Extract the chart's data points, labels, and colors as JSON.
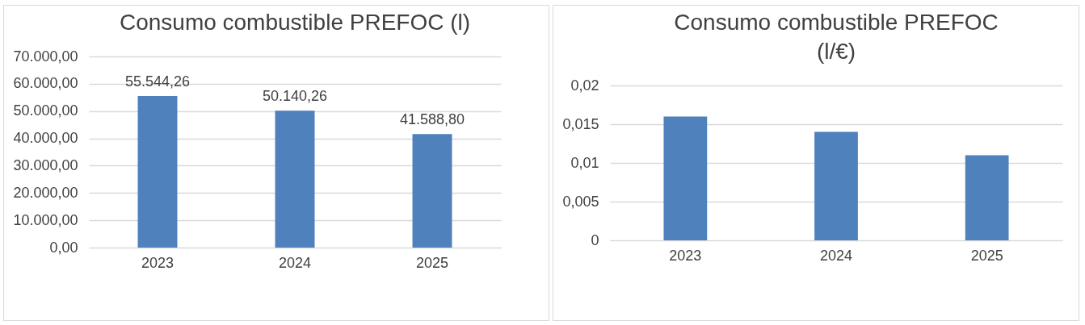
{
  "chart_data": [
    {
      "type": "bar",
      "title": "Consumo combustible PREFOC (l)",
      "categories": [
        "2023",
        "2024",
        "2025"
      ],
      "values": [
        55544.26,
        50140.26,
        41588.8
      ],
      "value_labels": [
        "55.544,26",
        "50.140,26",
        "41.588,80"
      ],
      "color": "#4f81bd",
      "ylim": [
        0,
        70000
      ],
      "yticks": [
        {
          "value": 0,
          "label": "0,00"
        },
        {
          "value": 10000,
          "label": "10.000,00"
        },
        {
          "value": 20000,
          "label": "20.000,00"
        },
        {
          "value": 30000,
          "label": "30.000,00"
        },
        {
          "value": 40000,
          "label": "40.000,00"
        },
        {
          "value": 50000,
          "label": "50.000,00"
        },
        {
          "value": 60000,
          "label": "60.000,00"
        },
        {
          "value": 70000,
          "label": "70.000,00"
        }
      ],
      "grid": true
    },
    {
      "type": "bar",
      "title": "Consumo combustible PREFOC (l/€)",
      "categories": [
        "2023",
        "2024",
        "2025"
      ],
      "values": [
        0.016,
        0.014,
        0.011
      ],
      "color": "#4f81bd",
      "ylim": [
        0,
        0.02
      ],
      "yticks": [
        0,
        {
          "value": 0.005,
          "label": "0,005"
        },
        {
          "value": 0.01,
          "label": "0,01"
        },
        {
          "value": 0.015,
          "label": "0,015"
        },
        {
          "value": 0.02,
          "label": "0,02"
        }
      ],
      "grid": true
    }
  ]
}
